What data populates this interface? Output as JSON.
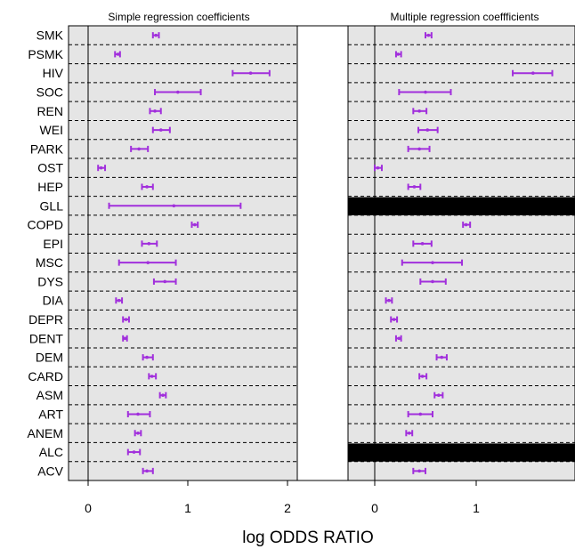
{
  "chart_data": [
    {
      "type": "forest",
      "title": "Simple regression coefficients",
      "xlabel": "log ODDS RATIO",
      "xlim": [
        -0.2,
        2.07
      ],
      "xticks": [
        0,
        1,
        2
      ],
      "categories": [
        "SMK",
        "PSMK",
        "HIV",
        "SOC",
        "REN",
        "WEI",
        "PARK",
        "OST",
        "HEP",
        "GLL",
        "COPD",
        "EPI",
        "MSC",
        "DYS",
        "DIA",
        "DEPR",
        "DENT",
        "DEM",
        "CARD",
        "ASM",
        "ART",
        "ANEM",
        "ALC",
        "ACV"
      ],
      "estimate": [
        0.68,
        0.3,
        1.63,
        0.9,
        0.67,
        0.73,
        0.51,
        0.13,
        0.59,
        0.86,
        1.07,
        0.61,
        0.6,
        0.77,
        0.31,
        0.38,
        0.37,
        0.59,
        0.64,
        0.75,
        0.5,
        0.5,
        0.46,
        0.59
      ],
      "lower": [
        0.65,
        0.27,
        1.45,
        0.67,
        0.62,
        0.65,
        0.43,
        0.1,
        0.54,
        0.21,
        1.04,
        0.54,
        0.31,
        0.66,
        0.28,
        0.35,
        0.35,
        0.55,
        0.61,
        0.72,
        0.4,
        0.47,
        0.4,
        0.55
      ],
      "upper": [
        0.71,
        0.32,
        1.82,
        1.13,
        0.73,
        0.82,
        0.6,
        0.17,
        0.65,
        1.53,
        1.1,
        0.69,
        0.88,
        0.88,
        0.34,
        0.41,
        0.39,
        0.65,
        0.68,
        0.78,
        0.62,
        0.53,
        0.52,
        0.65
      ],
      "color": "#a12fdc"
    },
    {
      "type": "forest",
      "title": "Multiple regression coeffficients",
      "xlabel": "log ODDS RATIO",
      "xlim": [
        -0.26,
        1.97
      ],
      "xticks": [
        0,
        1
      ],
      "categories": [
        "SMK",
        "PSMK",
        "HIV",
        "SOC",
        "REN",
        "WEI",
        "PARK",
        "OST",
        "HEP",
        "GLL",
        "COPD",
        "EPI",
        "MSC",
        "DYS",
        "DIA",
        "DEPR",
        "DENT",
        "DEM",
        "CARD",
        "ASM",
        "ART",
        "ANEM",
        "ALC",
        "ACV"
      ],
      "estimate": [
        0.53,
        0.23,
        1.56,
        0.5,
        0.44,
        0.52,
        0.44,
        0.03,
        0.39,
        null,
        0.9,
        0.47,
        0.57,
        0.57,
        0.14,
        0.19,
        0.24,
        0.66,
        0.47,
        0.63,
        0.45,
        0.34,
        null,
        0.44
      ],
      "lower": [
        0.5,
        0.21,
        1.36,
        0.24,
        0.38,
        0.43,
        0.33,
        0.0,
        0.33,
        null,
        0.87,
        0.38,
        0.27,
        0.45,
        0.11,
        0.16,
        0.21,
        0.61,
        0.44,
        0.59,
        0.33,
        0.31,
        null,
        0.38
      ],
      "upper": [
        0.56,
        0.26,
        1.75,
        0.75,
        0.51,
        0.62,
        0.54,
        0.07,
        0.45,
        null,
        0.94,
        0.56,
        0.86,
        0.7,
        0.17,
        0.22,
        0.26,
        0.71,
        0.51,
        0.67,
        0.57,
        0.37,
        null,
        0.5
      ],
      "missing_rows": [
        "GLL",
        "ALC"
      ],
      "color": "#a12fdc"
    }
  ],
  "colors": {
    "panel_bg": "#e5e5e5",
    "interval": "#a12fdc",
    "missing_band": "#000000",
    "grid": "#000000"
  }
}
